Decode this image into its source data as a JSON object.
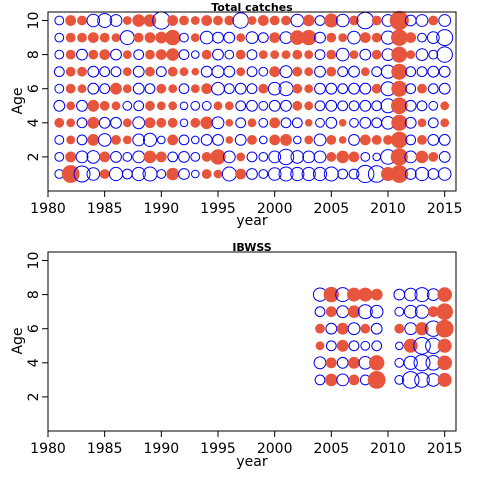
{
  "colors": {
    "positive": "#e8553d",
    "negative": "#0000ee",
    "frame": "#000000"
  },
  "chart_data": [
    {
      "type": "scatter",
      "title": "Total catches",
      "xlabel": "year",
      "ylabel": "Age",
      "xlim": [
        1980,
        2016
      ],
      "ylim": [
        0,
        10.5
      ],
      "xticks": [
        1980,
        1985,
        1990,
        1995,
        2000,
        2005,
        2010,
        2015
      ],
      "yticks": [
        2,
        4,
        6,
        8,
        10
      ],
      "legend": "none",
      "grid": false,
      "years": [
        1981,
        1982,
        1983,
        1984,
        1985,
        1986,
        1987,
        1988,
        1989,
        1990,
        1991,
        1992,
        1993,
        1994,
        1995,
        1996,
        1997,
        1998,
        1999,
        2000,
        2001,
        2002,
        2003,
        2004,
        2005,
        2006,
        2007,
        2008,
        2009,
        2010,
        2011,
        2012,
        2013,
        2014,
        2015
      ],
      "ages": [
        1,
        2,
        3,
        4,
        5,
        6,
        7,
        8,
        9,
        10
      ],
      "residuals": {
        "1": [
          -0.4,
          1.6,
          -1.3,
          -0.8,
          0.5,
          -0.9,
          -0.5,
          -0.9,
          -1.0,
          -0.4,
          0.8,
          -0.6,
          -0.3,
          0.5,
          0.4,
          -1.0,
          0.6,
          -0.6,
          -0.4,
          -0.8,
          -1.0,
          -0.9,
          -0.9,
          -0.9,
          -1.0,
          -0.5,
          -0.5,
          -1.5,
          -1.4,
          1.0,
          1.6,
          -0.6,
          -0.9,
          -0.6,
          -0.8
        ],
        "2": [
          -0.4,
          0.6,
          -0.7,
          -0.8,
          0.6,
          -0.6,
          -0.4,
          -0.7,
          0.8,
          0.6,
          -0.5,
          -0.6,
          -0.4,
          0.5,
          1.2,
          -0.7,
          0.4,
          -0.5,
          -0.4,
          -0.7,
          -1.2,
          -0.8,
          -0.7,
          -0.7,
          0.5,
          0.8,
          0.6,
          -0.4,
          -0.3,
          -1.1,
          1.5,
          -0.7,
          0.8,
          0.5,
          -0.6
        ],
        "3": [
          -0.4,
          0.4,
          -0.5,
          0.7,
          -0.8,
          0.5,
          0.4,
          -0.7,
          -0.9,
          -0.3,
          0.6,
          -0.5,
          -0.3,
          -0.6,
          -0.6,
          0.3,
          -0.6,
          0.5,
          -0.3,
          0.6,
          0.7,
          -0.3,
          0.4,
          -0.7,
          0.5,
          0.3,
          -0.6,
          0.6,
          0.5,
          0.5,
          1.4,
          -0.5,
          0.5,
          -0.6,
          -0.6
        ],
        "4": [
          0.5,
          0.4,
          -0.5,
          0.7,
          -0.6,
          -0.6,
          0.4,
          -0.7,
          0.6,
          0.5,
          0.5,
          -0.3,
          0.5,
          0.8,
          -0.7,
          0.3,
          -0.5,
          0.4,
          -0.4,
          0.6,
          -0.5,
          -0.5,
          0.3,
          -0.4,
          -0.6,
          0.3,
          -0.4,
          -0.6,
          -0.5,
          -0.8,
          1.3,
          -0.6,
          0.4,
          -0.5,
          0.4
        ],
        "5": [
          -0.6,
          0.4,
          -0.6,
          0.7,
          0.5,
          0.4,
          -0.4,
          -0.5,
          0.5,
          0.4,
          0.4,
          -0.3,
          -0.4,
          -0.4,
          0.4,
          0.4,
          -0.5,
          -0.6,
          -0.4,
          -0.6,
          -0.6,
          0.5,
          0.4,
          -0.5,
          -0.6,
          -0.5,
          -0.5,
          -0.6,
          -0.5,
          -1.0,
          1.4,
          -0.6,
          -0.5,
          -0.4,
          0.4
        ],
        "6": [
          -0.4,
          0.5,
          0.4,
          -0.6,
          -0.5,
          0.7,
          0.4,
          -0.6,
          -0.5,
          0.5,
          0.4,
          -0.5,
          0.4,
          0.6,
          -0.8,
          -0.5,
          -0.6,
          -0.5,
          0.5,
          -0.8,
          -1.0,
          0.5,
          0.4,
          -0.6,
          -0.6,
          -0.5,
          -0.6,
          -0.6,
          0.5,
          -1.0,
          1.3,
          -0.5,
          0.5,
          -0.5,
          -0.6
        ],
        "7": [
          -0.5,
          0.5,
          0.5,
          -0.6,
          -0.5,
          -0.5,
          0.4,
          -0.6,
          0.5,
          -0.5,
          0.5,
          0.4,
          0.3,
          -0.6,
          -0.7,
          -0.6,
          0.4,
          -0.5,
          -0.4,
          0.6,
          -0.7,
          0.5,
          0.4,
          -0.6,
          0.5,
          -0.5,
          -0.6,
          0.4,
          -0.5,
          -0.9,
          1.3,
          -0.5,
          -0.5,
          -0.6,
          -0.6
        ],
        "8": [
          -0.4,
          0.5,
          -0.6,
          0.5,
          0.6,
          -0.6,
          0.4,
          -0.5,
          0.5,
          0.6,
          0.8,
          -0.5,
          -0.3,
          0.5,
          -0.6,
          -0.4,
          0.5,
          -0.5,
          0.4,
          0.4,
          0.4,
          0.5,
          0.4,
          -0.5,
          0.5,
          -0.8,
          0.4,
          -0.6,
          0.5,
          -0.7,
          1.3,
          0.4,
          -0.7,
          -0.4,
          -1.2
        ],
        "9": [
          -0.4,
          0.5,
          0.5,
          0.6,
          0.5,
          0.4,
          -1.0,
          0.5,
          0.6,
          0.7,
          1.2,
          -0.4,
          0.4,
          -0.8,
          -0.6,
          -0.6,
          0.4,
          -0.7,
          -0.5,
          0.6,
          -0.7,
          1.1,
          1.2,
          -0.6,
          0.5,
          0.4,
          -0.8,
          0.6,
          0.5,
          -0.9,
          1.4,
          0.6,
          -0.4,
          -0.7,
          -1.3
        ],
        "10": [
          -0.4,
          0.6,
          0.5,
          -0.8,
          -1.0,
          -0.7,
          0.4,
          0.8,
          0.8,
          -1.5,
          0.6,
          0.5,
          0.4,
          0.6,
          0.5,
          0.5,
          -1.2,
          0.4,
          0.6,
          0.5,
          0.5,
          -0.8,
          0.7,
          -0.5,
          1.0,
          -0.8,
          0.5,
          -1.4,
          0.5,
          -0.7,
          1.9,
          -0.6,
          -0.7,
          0.5,
          -0.7
        ]
      }
    },
    {
      "type": "scatter",
      "title": "IBWSS",
      "xlabel": "year",
      "ylabel": "Age",
      "xlim": [
        1980,
        2016
      ],
      "ylim": [
        0,
        10.5
      ],
      "xticks": [
        1980,
        1985,
        1990,
        1995,
        2000,
        2005,
        2010,
        2015
      ],
      "yticks": [
        2,
        4,
        6,
        8,
        10
      ],
      "legend": "none",
      "grid": false,
      "years": [
        2004,
        2005,
        2006,
        2007,
        2008,
        2009,
        2011,
        2012,
        2013,
        2014,
        2015
      ],
      "ages": [
        3,
        4,
        5,
        6,
        7,
        8
      ],
      "residuals": {
        "3": [
          -0.5,
          0.8,
          -0.7,
          0.6,
          -0.5,
          1.6,
          -0.4,
          -1.4,
          -1.1,
          -0.8,
          1.0
        ],
        "4": [
          -0.7,
          0.6,
          -0.6,
          0.7,
          -0.8,
          1.2,
          -0.4,
          -0.9,
          -1.3,
          -1.1,
          1.1
        ],
        "5": [
          0.4,
          -0.5,
          0.7,
          -0.5,
          -0.4,
          -0.5,
          -0.3,
          1.0,
          -1.4,
          -1.2,
          1.0
        ],
        "6": [
          0.5,
          -0.6,
          0.7,
          -0.7,
          0.5,
          -0.6,
          0.5,
          -0.7,
          0.9,
          -1.2,
          1.6
        ],
        "7": [
          -0.5,
          0.6,
          -0.7,
          0.8,
          -1.0,
          -0.8,
          -0.4,
          -0.8,
          -0.9,
          0.6,
          1.4
        ],
        "8": [
          -0.9,
          1.2,
          -1.0,
          1.0,
          1.0,
          0.7,
          -0.6,
          -0.8,
          -1.0,
          -0.7,
          1.1
        ]
      }
    }
  ]
}
